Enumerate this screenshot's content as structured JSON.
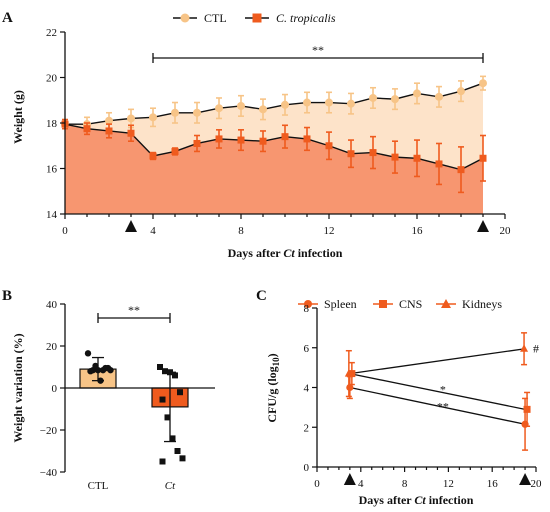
{
  "chart_data": [
    {
      "panel": "A",
      "type": "area",
      "xlabel": "Days after Ct infection",
      "xlabel_parts": [
        "Days after ",
        "Ct",
        " infection"
      ],
      "ylabel": "Weight (g)",
      "xlim": [
        0,
        20
      ],
      "ylim": [
        14,
        22
      ],
      "xticks": [
        0,
        4,
        8,
        12,
        16,
        20
      ],
      "yticks": [
        14,
        16,
        18,
        20,
        22
      ],
      "x": [
        0,
        1,
        2,
        3,
        4,
        5,
        6,
        7,
        8,
        9,
        10,
        11,
        12,
        13,
        14,
        15,
        16,
        17,
        18,
        19
      ],
      "series": [
        {
          "name": "CTL",
          "color": "#f7c487",
          "fill": "#fde3c9",
          "marker": "circle",
          "values": [
            17.95,
            17.95,
            18.1,
            18.2,
            18.25,
            18.45,
            18.45,
            18.65,
            18.75,
            18.6,
            18.8,
            18.9,
            18.9,
            18.85,
            19.1,
            19.05,
            19.3,
            19.15,
            19.4,
            19.75
          ],
          "errors": [
            0.2,
            0.3,
            0.35,
            0.4,
            0.4,
            0.45,
            0.45,
            0.45,
            0.45,
            0.45,
            0.45,
            0.45,
            0.45,
            0.45,
            0.45,
            0.45,
            0.45,
            0.45,
            0.45,
            0.3
          ]
        },
        {
          "name": "C. tropicalis",
          "color": "#ef5b1e",
          "fill": "#f79670",
          "marker": "square",
          "values": [
            17.95,
            17.75,
            17.65,
            17.55,
            16.55,
            16.75,
            17.1,
            17.3,
            17.25,
            17.2,
            17.4,
            17.3,
            17.0,
            16.65,
            16.7,
            16.5,
            16.45,
            16.2,
            15.95,
            16.45
          ],
          "errors": [
            0.2,
            0.25,
            0.3,
            0.35,
            0.15,
            0.15,
            0.35,
            0.4,
            0.45,
            0.45,
            0.5,
            0.5,
            0.6,
            0.6,
            0.7,
            0.7,
            0.8,
            0.9,
            1.0,
            1.0
          ]
        }
      ],
      "infection_markers_x": [
        3,
        19
      ],
      "significance": {
        "label": "**",
        "x_start": 4,
        "x_end": 19
      },
      "legend_position": "top-center"
    },
    {
      "panel": "B",
      "type": "bar",
      "ylabel": "Weight variation (%)",
      "ylim": [
        -40,
        40
      ],
      "yticks": [
        -40,
        -20,
        0,
        20,
        40
      ],
      "categories": [
        "CTL",
        "Ct"
      ],
      "values": [
        9,
        -9
      ],
      "errors": [
        5.5,
        16.5
      ],
      "colors": [
        "#f7c487",
        "#ef5b1e"
      ],
      "points": [
        {
          "category": "CTL",
          "marker": "circle",
          "values": [
            16.5,
            8.5,
            8.5,
            8.5,
            9.5,
            8.0,
            10.5,
            3.5,
            9.5,
            8.5
          ]
        },
        {
          "category": "Ct",
          "marker": "square",
          "values": [
            10,
            8,
            7.5,
            6,
            -2,
            -5.5,
            -14,
            -24,
            -30,
            -33.5,
            -35
          ]
        }
      ],
      "significance": {
        "label": "**"
      }
    },
    {
      "panel": "C",
      "type": "line",
      "xlabel": "Days after Ct infection",
      "xlabel_parts": [
        "Days after ",
        "Ct",
        " infection"
      ],
      "ylabel": "CFU/g (log10)",
      "ylabel_parts": [
        "CFU/g (log",
        "10",
        ")"
      ],
      "xlim": [
        0,
        20
      ],
      "ylim": [
        0,
        8
      ],
      "xticks": [
        0,
        4,
        8,
        12,
        16,
        20
      ],
      "yticks": [
        0,
        2,
        4,
        6,
        8
      ],
      "x": [
        3,
        19
      ],
      "series": [
        {
          "name": "Spleen",
          "marker": "circle",
          "values": [
            4.0,
            2.15
          ],
          "errors": [
            0.55,
            1.3
          ],
          "sig_label": "**"
        },
        {
          "name": "CNS",
          "marker": "square",
          "values": [
            4.7,
            2.9
          ],
          "errors": [
            0.55,
            0.85
          ],
          "sig_label": "*"
        },
        {
          "name": "Kidneys",
          "marker": "triangle",
          "values": [
            4.7,
            5.95
          ],
          "errors": [
            1.15,
            0.8
          ],
          "sig_label": "#"
        }
      ],
      "color": "#ef5b1e",
      "infection_markers_x": [
        3,
        19
      ],
      "legend_position": "top"
    }
  ]
}
